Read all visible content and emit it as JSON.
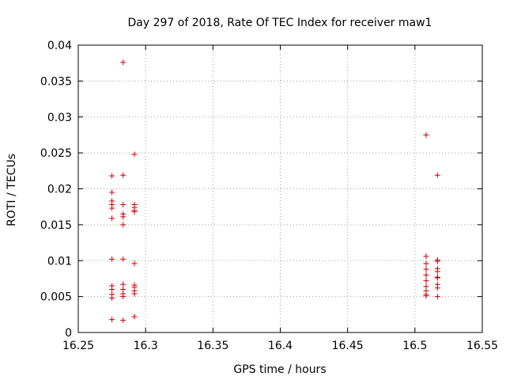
{
  "chart_data": {
    "type": "scatter",
    "title": "Day 297 of 2018, Rate Of TEC Index for receiver maw1",
    "xlabel": "GPS time / hours",
    "ylabel": "ROTI / TECUs",
    "xlim": [
      16.25,
      16.55
    ],
    "ylim": [
      0,
      0.04
    ],
    "xticks": [
      "16.25",
      "16.3",
      "16.35",
      "16.4",
      "16.45",
      "16.5",
      "16.55"
    ],
    "yticks": [
      "0",
      "0.005",
      "0.01",
      "0.015",
      "0.02",
      "0.025",
      "0.03",
      "0.035",
      "0.04"
    ],
    "grid": true,
    "marker": "+",
    "color": "#cc0000",
    "series": [
      {
        "name": "ROTI",
        "points": [
          [
            16.275,
            0.0218
          ],
          [
            16.275,
            0.0195
          ],
          [
            16.275,
            0.0183
          ],
          [
            16.275,
            0.0178
          ],
          [
            16.275,
            0.0173
          ],
          [
            16.275,
            0.0159
          ],
          [
            16.275,
            0.0102
          ],
          [
            16.275,
            0.0065
          ],
          [
            16.275,
            0.006
          ],
          [
            16.275,
            0.0053
          ],
          [
            16.275,
            0.0048
          ],
          [
            16.275,
            0.0018
          ],
          [
            16.2833,
            0.0376
          ],
          [
            16.2833,
            0.0219
          ],
          [
            16.2833,
            0.0178
          ],
          [
            16.2833,
            0.0165
          ],
          [
            16.2833,
            0.0161
          ],
          [
            16.2833,
            0.015
          ],
          [
            16.2833,
            0.0102
          ],
          [
            16.2833,
            0.0067
          ],
          [
            16.2833,
            0.006
          ],
          [
            16.2833,
            0.0054
          ],
          [
            16.2833,
            0.005
          ],
          [
            16.2833,
            0.0017
          ],
          [
            16.2917,
            0.0248
          ],
          [
            16.2917,
            0.0178
          ],
          [
            16.2917,
            0.0174
          ],
          [
            16.2917,
            0.017
          ],
          [
            16.2917,
            0.0168
          ],
          [
            16.2917,
            0.0096
          ],
          [
            16.2917,
            0.0066
          ],
          [
            16.2917,
            0.0063
          ],
          [
            16.2917,
            0.0058
          ],
          [
            16.2917,
            0.0054
          ],
          [
            16.2917,
            0.0022
          ],
          [
            16.5083,
            0.0275
          ],
          [
            16.5083,
            0.0106
          ],
          [
            16.5083,
            0.0096
          ],
          [
            16.5083,
            0.0088
          ],
          [
            16.5083,
            0.008
          ],
          [
            16.5083,
            0.0072
          ],
          [
            16.5083,
            0.0064
          ],
          [
            16.5083,
            0.0058
          ],
          [
            16.5083,
            0.0053
          ],
          [
            16.5083,
            0.0051
          ],
          [
            16.5167,
            0.0219
          ],
          [
            16.5167,
            0.0101
          ],
          [
            16.5167,
            0.0099
          ],
          [
            16.5167,
            0.0089
          ],
          [
            16.5167,
            0.0085
          ],
          [
            16.5167,
            0.0077
          ],
          [
            16.5167,
            0.0076
          ],
          [
            16.5167,
            0.0067
          ],
          [
            16.5167,
            0.0062
          ],
          [
            16.5167,
            0.005
          ]
        ]
      }
    ]
  }
}
